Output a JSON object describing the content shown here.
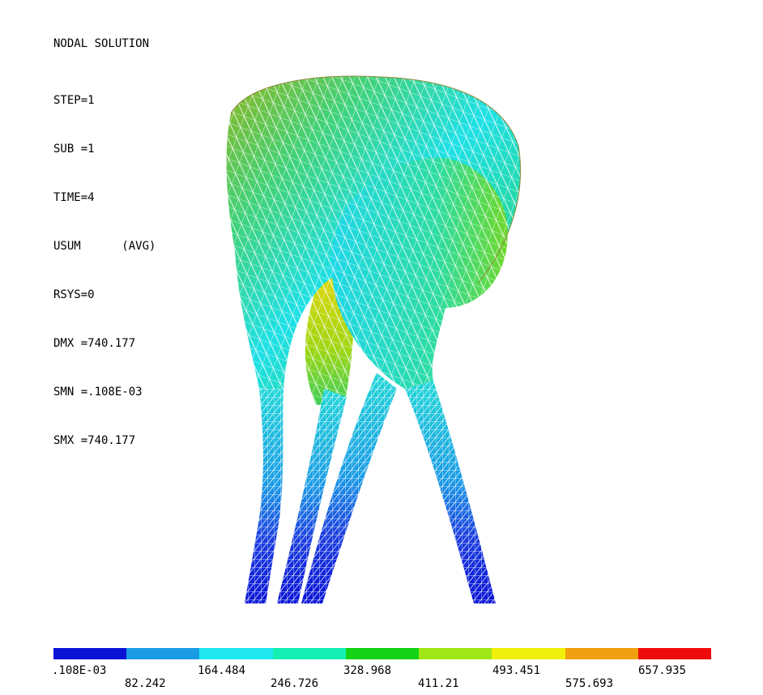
{
  "header": {
    "title": "NODAL SOLUTION",
    "lines": [
      "STEP=1",
      "SUB =1",
      "TIME=4",
      "USUM      (AVG)",
      "RSYS=0",
      "DMX =740.177",
      "SMN =.108E-03",
      "SMX =740.177"
    ]
  },
  "legend": {
    "colors": [
      "#0a14d6",
      "#1a9be6",
      "#1fe8f0",
      "#14f0b4",
      "#14d214",
      "#a0e614",
      "#f0f00a",
      "#f0a00f",
      "#f00a0a"
    ],
    "labels_top": [
      ".108E-03",
      "164.484",
      "328.968",
      "493.451",
      "657.935"
    ],
    "labels_bottom": [
      "82.242",
      "246.726",
      "411.21",
      "575.693"
    ]
  }
}
